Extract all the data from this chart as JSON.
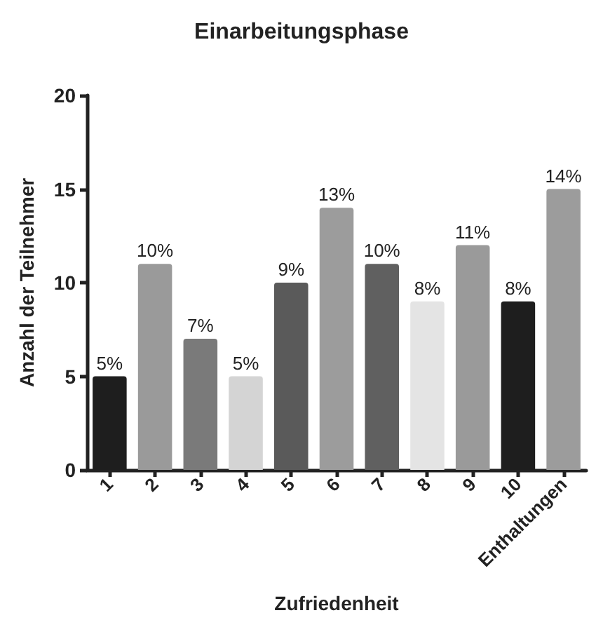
{
  "chart_data": {
    "type": "bar",
    "title": "Einarbeitungsphase",
    "xlabel": "Zufriedenheit",
    "ylabel": "Anzahl der Teilnehmer",
    "categories": [
      "1",
      "2",
      "3",
      "4",
      "5",
      "6",
      "7",
      "8",
      "9",
      "10",
      "Enthaltungen"
    ],
    "values": [
      5,
      11,
      7,
      5,
      10,
      14,
      11,
      9,
      12,
      9,
      15
    ],
    "colors": [
      "#1e1e1e",
      "#9a9a9a",
      "#7a7a7a",
      "#d4d4d4",
      "#5a5a5a",
      "#9c9c9c",
      "#606060",
      "#e4e4e4",
      "#9a9a9a",
      "#1e1e1e",
      "#9c9c9c"
    ],
    "annotations": [
      {
        "text": "5%",
        "x": "1",
        "y": 5
      },
      {
        "text": "10%",
        "x": "2",
        "y": 11
      },
      {
        "text": "7%",
        "x": "3",
        "y": 7
      },
      {
        "text": "5%",
        "x": "4",
        "y": 5
      },
      {
        "text": "9%",
        "x": "5",
        "y": 10
      },
      {
        "text": "13%",
        "x": "6",
        "y": 14
      },
      {
        "text": "10%",
        "x": "7",
        "y": 11
      },
      {
        "text": "8%",
        "x": "8",
        "y": 9
      },
      {
        "text": "11%",
        "x": "9",
        "y": 12
      },
      {
        "text": "8%",
        "x": "10",
        "y": 9
      },
      {
        "text": "14%",
        "x": "Enthaltungen",
        "y": 15
      }
    ],
    "ylim": [
      0,
      20
    ],
    "yticks": [
      0,
      5,
      10,
      15,
      20
    ],
    "grid": false
  }
}
